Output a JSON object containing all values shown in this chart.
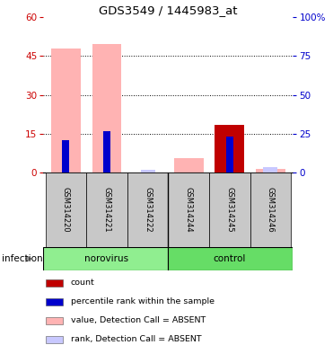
{
  "title": "GDS3549 / 1445983_at",
  "samples": [
    "GSM314220",
    "GSM314221",
    "GSM314222",
    "GSM314244",
    "GSM314245",
    "GSM314246"
  ],
  "ylim_left": [
    0,
    60
  ],
  "ylim_right": [
    0,
    100
  ],
  "yticks_left": [
    0,
    15,
    30,
    45,
    60
  ],
  "yticks_right": [
    0,
    25,
    50,
    75,
    100
  ],
  "yticklabels_right": [
    "0",
    "25",
    "50",
    "75",
    "100%"
  ],
  "value_absent": [
    48.0,
    49.5,
    0.0,
    0.0,
    0.0,
    0.0
  ],
  "rank_absent": [
    0.0,
    0.0,
    1.0,
    0.0,
    0.0,
    2.0
  ],
  "value_present": [
    0.0,
    0.0,
    0.0,
    5.5,
    0.0,
    1.5
  ],
  "count": [
    0.0,
    0.0,
    0.0,
    0.0,
    18.5,
    0.0
  ],
  "percentile_rank": [
    12.5,
    16.0,
    0.0,
    0.0,
    14.0,
    0.0
  ],
  "color_count": "#c00000",
  "color_percentile": "#0000cc",
  "color_value_absent": "#ffb3b3",
  "color_value_present": "#ffb3b3",
  "color_rank_absent": "#c8c8ff",
  "color_group_norovirus": "#90ee90",
  "color_group_control": "#66dd66",
  "color_bg_sample": "#c8c8c8",
  "color_left_axis": "#cc0000",
  "color_right_axis": "#0000cc",
  "gridline_y": [
    15,
    30,
    45
  ],
  "group_factor": "infection",
  "group_labels": [
    "norovirus",
    "control"
  ],
  "legend_items": [
    [
      "#c00000",
      "count"
    ],
    [
      "#0000cc",
      "percentile rank within the sample"
    ],
    [
      "#ffb3b3",
      "value, Detection Call = ABSENT"
    ],
    [
      "#c8c8ff",
      "rank, Detection Call = ABSENT"
    ]
  ]
}
